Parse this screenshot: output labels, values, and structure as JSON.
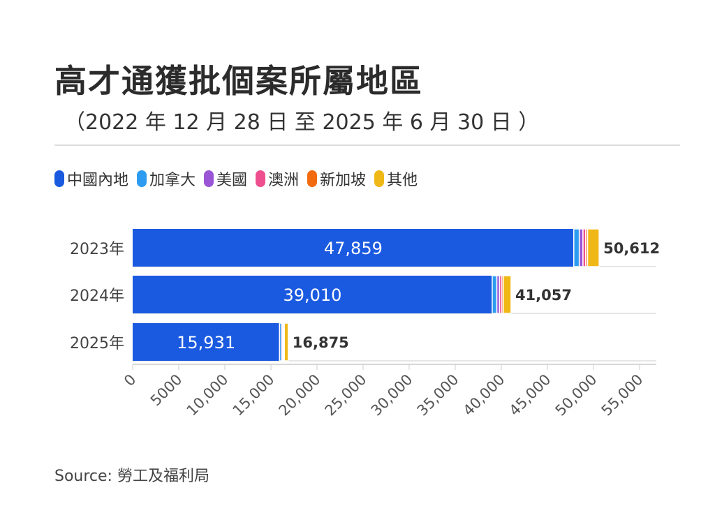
{
  "title": "高才通獲批個案所屬地區",
  "subtitle": "（2022 年 12 月 28 日 至 2025 年 6 月 30 日 ）",
  "source": "Source: 勞工及福利局",
  "chart_data": {
    "type": "bar",
    "orientation": "horizontal",
    "stacked": true,
    "title": "高才通獲批個案所屬地區",
    "categories": [
      "2023年",
      "2024年",
      "2025年"
    ],
    "series": [
      {
        "name": "中國內地",
        "color": "#1a5ae0",
        "values": [
          47859,
          39010,
          15931
        ]
      },
      {
        "name": "加拿大",
        "color": "#2d9cf0",
        "values": [
          600,
          500,
          200
        ]
      },
      {
        "name": "美國",
        "color": "#9a55d6",
        "values": [
          400,
          300,
          150
        ]
      },
      {
        "name": "澳洲",
        "color": "#ee4f8f",
        "values": [
          300,
          250,
          100
        ]
      },
      {
        "name": "新加坡",
        "color": "#f26b0f",
        "values": [
          200,
          150,
          80
        ]
      },
      {
        "name": "其他",
        "color": "#f0b817",
        "values": [
          1253,
          847,
          414
        ]
      }
    ],
    "totals": [
      "50,612",
      "41,057",
      "16,875"
    ],
    "inner_labels": [
      "47,859",
      "39,010",
      "15,931"
    ],
    "xticks": [
      "0",
      "5000",
      "10,000",
      "15,000",
      "20,000",
      "25,000",
      "30,000",
      "35,000",
      "40,000",
      "45,000",
      "50,000",
      "55,000"
    ],
    "xlim": [
      0,
      55000
    ],
    "legend": "top-left",
    "grid": true
  }
}
